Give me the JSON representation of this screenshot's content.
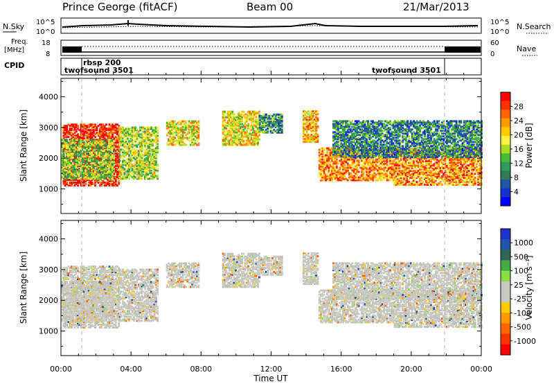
{
  "header": {
    "station": "Prince George (fitACF)",
    "beam": "Beam 00",
    "date": "21/Mar/2013"
  },
  "noise_panel": {
    "left_label": "N.Sky",
    "right_label": "N.Search",
    "left_ticks": [
      "10^5",
      "10^0"
    ],
    "right_ticks": [
      "10^5",
      "10^0"
    ]
  },
  "freq_panel": {
    "left_label_line1": "Freq.",
    "left_label_line2": "[MHz]",
    "right_label": "Nave",
    "left_ticks": [
      "18",
      "8"
    ],
    "right_ticks": [
      "60",
      "0"
    ]
  },
  "cpid_panel": {
    "label": "CPID",
    "programs": [
      {
        "name": "twofsound 3501",
        "start_hour": 0,
        "end_hour": 1
      },
      {
        "name": "rbsp 200",
        "start_hour": 1,
        "end_hour": 22
      },
      {
        "name": "twofsound 3501",
        "start_hour": 22,
        "end_hour": 24
      }
    ]
  },
  "power_colorbar": {
    "label": "Power [dB]",
    "ticks": [
      "28",
      "24",
      "20",
      "16",
      "12",
      "8",
      "4"
    ],
    "colors": [
      "#ff0000",
      "#ff3300",
      "#ff6600",
      "#ff9900",
      "#ffcc00",
      "#ffee44",
      "#aadd22",
      "#44bb33",
      "#2f9a5a",
      "#337755",
      "#2255aa",
      "#1133cc",
      "#0000ff"
    ]
  },
  "velocity_colorbar": {
    "label": "Velocity [m s⁻¹]",
    "ticks": [
      "1000",
      "500",
      "100",
      "25",
      "-25",
      "-100",
      "-500",
      "-1000"
    ],
    "colors": [
      "#2233cc",
      "#2255aa",
      "#336655",
      "#44aa44",
      "#88dd44",
      "#c8c8c0",
      "#c8c8c0",
      "#ffcc00",
      "#ff9900",
      "#ff6600",
      "#ff3300",
      "#ff0000"
    ]
  },
  "axes": {
    "xlabel": "Time UT",
    "ylabel": "Slant Range [km]",
    "x_ticks": [
      "00:00",
      "04:00",
      "08:00",
      "12:00",
      "16:00",
      "20:00",
      "00:00"
    ],
    "y_ticks": [
      "1000",
      "2000",
      "3000",
      "4000"
    ]
  },
  "chart_data": {
    "type": "heatmap",
    "x_unit": "hours UT",
    "xlim": [
      0,
      24
    ],
    "ylim": [
      200,
      4600
    ],
    "scatter_bands": [
      {
        "t_start": 0.1,
        "t_end": 3.3,
        "range_start": 1080,
        "range_end": 3100,
        "power_db": 27
      },
      {
        "t_start": 0.0,
        "t_end": 3.0,
        "range_start": 1300,
        "range_end": 2600,
        "power_db": 14
      },
      {
        "t_start": 3.3,
        "t_end": 5.5,
        "range_start": 1300,
        "range_end": 3000,
        "power_db": 16
      },
      {
        "t_start": 6.0,
        "t_end": 7.8,
        "range_start": 2400,
        "range_end": 3200,
        "power_db": 18
      },
      {
        "t_start": 9.2,
        "t_end": 11.3,
        "range_start": 2400,
        "range_end": 3500,
        "power_db": 18
      },
      {
        "t_start": 11.3,
        "t_end": 12.6,
        "range_start": 2800,
        "range_end": 3400,
        "power_db": 10
      },
      {
        "t_start": 13.8,
        "t_end": 14.7,
        "range_start": 2500,
        "range_end": 3500,
        "power_db": 20
      },
      {
        "t_start": 14.7,
        "t_end": 19.0,
        "range_start": 1250,
        "range_end": 2300,
        "power_db": 22
      },
      {
        "t_start": 19.0,
        "t_end": 24.0,
        "range_start": 1100,
        "range_end": 2300,
        "power_db": 22
      },
      {
        "t_start": 15.5,
        "t_end": 24.0,
        "range_start": 2000,
        "range_end": 3200,
        "power_db": 9
      }
    ]
  }
}
